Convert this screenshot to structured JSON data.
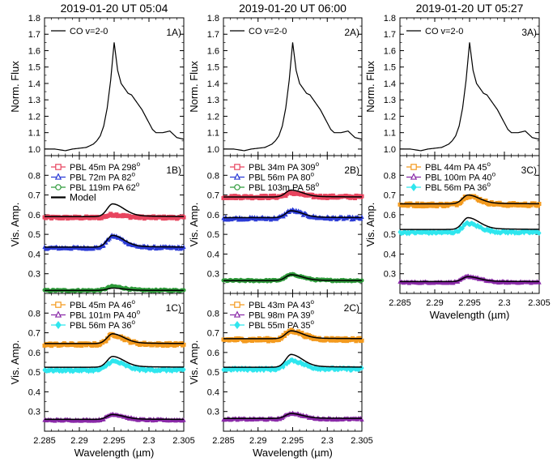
{
  "figure": {
    "x_label": "Wavelength (µm)",
    "x_ticks": [
      2.285,
      2.29,
      2.295,
      2.3,
      2.305
    ],
    "x_tick_labels": [
      "2.285",
      "2.29",
      "2.295",
      "2.3",
      "2.305"
    ]
  },
  "chart_data": [
    {
      "id": "1A",
      "type": "line",
      "panel_label": "1A)",
      "title": "2019-01-20 UT 05:04",
      "ylabel": "Norm. Flux",
      "ylim": [
        0.96,
        1.8
      ],
      "y_ticks": [
        1.0,
        1.1,
        1.2,
        1.3,
        1.4,
        1.5,
        1.6,
        1.7,
        1.8
      ],
      "y_tick_labels": [
        "1.0",
        "1.1",
        "1.2",
        "1.3",
        "1.4",
        "1.5",
        "1.6",
        "1.7",
        "1.8"
      ],
      "xlim": [
        2.285,
        2.305
      ],
      "series": [
        {
          "name": "CO v=2-0",
          "color": "#000000",
          "style": "line",
          "x": [
            2.285,
            2.2865,
            2.288,
            2.289,
            2.29,
            2.291,
            2.292,
            2.2925,
            2.293,
            2.2935,
            2.294,
            2.2945,
            2.295,
            2.2955,
            2.296,
            2.2965,
            2.297,
            2.2975,
            2.298,
            2.2985,
            2.299,
            2.2995,
            2.3,
            2.3005,
            2.301,
            2.302,
            2.303,
            2.304,
            2.305
          ],
          "y": [
            1.0,
            1.0,
            0.99,
            1.0,
            1.005,
            1.01,
            1.03,
            1.05,
            1.08,
            1.14,
            1.25,
            1.42,
            1.65,
            1.48,
            1.4,
            1.37,
            1.34,
            1.33,
            1.3,
            1.27,
            1.24,
            1.2,
            1.16,
            1.12,
            1.1,
            1.1,
            1.11,
            1.07,
            1.06
          ]
        }
      ]
    },
    {
      "id": "2A",
      "type": "line",
      "panel_label": "2A)",
      "title": "2019-01-20 UT 06:00",
      "ylabel": "Norm. Flux",
      "ylim": [
        0.96,
        1.8
      ],
      "y_ticks": [
        1.0,
        1.1,
        1.2,
        1.3,
        1.4,
        1.5,
        1.6,
        1.7,
        1.8
      ],
      "y_tick_labels": [
        "1.0",
        "1.1",
        "1.2",
        "1.3",
        "1.4",
        "1.5",
        "1.6",
        "1.7",
        "1.8"
      ],
      "xlim": [
        2.285,
        2.305
      ],
      "series": [
        {
          "name": "CO v=2-0",
          "color": "#000000",
          "style": "line",
          "x": [
            2.285,
            2.2865,
            2.288,
            2.289,
            2.29,
            2.291,
            2.292,
            2.2925,
            2.293,
            2.2935,
            2.294,
            2.2945,
            2.295,
            2.2955,
            2.296,
            2.2965,
            2.297,
            2.2975,
            2.298,
            2.2985,
            2.299,
            2.2995,
            2.3,
            2.3005,
            2.301,
            2.302,
            2.303,
            2.304,
            2.305
          ],
          "y": [
            1.0,
            1.0,
            0.99,
            1.0,
            1.005,
            1.01,
            1.03,
            1.05,
            1.08,
            1.14,
            1.25,
            1.42,
            1.65,
            1.48,
            1.4,
            1.37,
            1.34,
            1.33,
            1.3,
            1.27,
            1.24,
            1.2,
            1.16,
            1.12,
            1.1,
            1.1,
            1.11,
            1.07,
            1.06
          ]
        }
      ]
    },
    {
      "id": "3A",
      "type": "line",
      "panel_label": "3A)",
      "title": "2019-01-20 UT 05:27",
      "ylabel": "Norm. Flux",
      "ylim": [
        0.96,
        1.8
      ],
      "y_ticks": [
        1.0,
        1.1,
        1.2,
        1.3,
        1.4,
        1.5,
        1.6,
        1.7,
        1.8
      ],
      "y_tick_labels": [
        "1.0",
        "1.1",
        "1.2",
        "1.3",
        "1.4",
        "1.5",
        "1.6",
        "1.7",
        "1.8"
      ],
      "xlim": [
        2.285,
        2.305
      ],
      "series": [
        {
          "name": "CO v=2-0",
          "color": "#000000",
          "style": "line",
          "x": [
            2.285,
            2.2865,
            2.288,
            2.289,
            2.29,
            2.291,
            2.292,
            2.2925,
            2.293,
            2.2935,
            2.294,
            2.2945,
            2.295,
            2.2955,
            2.296,
            2.2965,
            2.297,
            2.2975,
            2.298,
            2.2985,
            2.299,
            2.2995,
            2.3,
            2.3005,
            2.301,
            2.302,
            2.303,
            2.304,
            2.305
          ],
          "y": [
            1.0,
            1.0,
            0.99,
            1.0,
            1.005,
            1.01,
            1.03,
            1.05,
            1.08,
            1.14,
            1.25,
            1.42,
            1.65,
            1.48,
            1.4,
            1.37,
            1.34,
            1.33,
            1.3,
            1.27,
            1.24,
            1.2,
            1.16,
            1.12,
            1.1,
            1.1,
            1.11,
            1.07,
            1.06
          ]
        }
      ]
    },
    {
      "id": "1B",
      "type": "scatter",
      "panel_label": "1B)",
      "ylabel": "Vis. Amp.",
      "ylim": [
        0.2,
        0.9
      ],
      "y_ticks": [
        0.3,
        0.4,
        0.5,
        0.6,
        0.7,
        0.8
      ],
      "y_tick_labels": [
        "0.3",
        "0.4",
        "0.5",
        "0.6",
        "0.7",
        "0.8"
      ],
      "xlim": [
        2.285,
        2.305
      ],
      "series": [
        {
          "name": "PBL 45m PA 298°",
          "label_text": "PBL 45m PA 298",
          "superscript": "o",
          "color": "#e8455f",
          "marker": "square",
          "baseline": 0.585,
          "peak": 0.015,
          "model_baseline": 0.59,
          "model_peak": 0.065,
          "noise": 0.006
        },
        {
          "name": "PBL 72m PA 82°",
          "label_text": "PBL 72m PA 82",
          "superscript": "o",
          "color": "#2b3bd6",
          "marker": "triangle",
          "baseline": 0.43,
          "peak": 0.06,
          "model_baseline": 0.435,
          "model_peak": 0.06,
          "noise": 0.006
        },
        {
          "name": "PBL 119m PA 62°",
          "label_text": "PBL 119m PA 62",
          "superscript": "o",
          "color": "#2e9a3a",
          "marker": "circle",
          "baseline": 0.215,
          "peak": 0.02,
          "model_baseline": 0.215,
          "model_peak": 0.012,
          "noise": 0.004
        }
      ],
      "model": {
        "name": "Model",
        "color": "#000000"
      }
    },
    {
      "id": "2B",
      "type": "scatter",
      "panel_label": "2B)",
      "ylabel": "Vis. Amp.",
      "ylim": [
        0.2,
        0.9
      ],
      "y_ticks": [
        0.3,
        0.4,
        0.5,
        0.6,
        0.7,
        0.8
      ],
      "y_tick_labels": [
        "0.3",
        "0.4",
        "0.5",
        "0.6",
        "0.7",
        "0.8"
      ],
      "xlim": [
        2.285,
        2.305
      ],
      "series": [
        {
          "name": "PBL 34m PA 309°",
          "label_text": "PBL 34m PA 309",
          "superscript": "o",
          "color": "#e8455f",
          "marker": "square",
          "baseline": 0.69,
          "peak": 0.02,
          "model_baseline": 0.69,
          "model_peak": 0.035,
          "noise": 0.007
        },
        {
          "name": "PBL 56m PA 80°",
          "label_text": "PBL 56m PA 80",
          "superscript": "o",
          "color": "#2b3bd6",
          "marker": "triangle",
          "baseline": 0.58,
          "peak": 0.04,
          "model_baseline": 0.585,
          "model_peak": 0.035,
          "noise": 0.007
        },
        {
          "name": "PBL 103m PA 58°",
          "label_text": "PBL 103m PA 58",
          "superscript": "o",
          "color": "#2e9a3a",
          "marker": "circle",
          "baseline": 0.265,
          "peak": 0.03,
          "model_baseline": 0.265,
          "model_peak": 0.03,
          "noise": 0.004
        }
      ],
      "model": {
        "name": "Model",
        "color": "#000000"
      }
    },
    {
      "id": "3C",
      "type": "scatter",
      "panel_label": "3C)",
      "ylabel": "Vis. Amp.",
      "ylim": [
        0.2,
        0.9
      ],
      "y_ticks": [
        0.3,
        0.4,
        0.5,
        0.6,
        0.7,
        0.8
      ],
      "y_tick_labels": [
        "0.3",
        "0.4",
        "0.5",
        "0.6",
        "0.7",
        "0.8"
      ],
      "xlim": [
        2.285,
        2.305
      ],
      "series": [
        {
          "name": "PBL 44m PA 45°",
          "label_text": "PBL 44m PA 45",
          "superscript": "o",
          "color": "#f39a1e",
          "marker": "square",
          "baseline": 0.65,
          "peak": 0.045,
          "model_baseline": 0.655,
          "model_peak": 0.045,
          "noise": 0.008
        },
        {
          "name": "PBL 100m PA 40°",
          "label_text": "PBL 100m PA 40",
          "superscript": "o",
          "color": "#8a2aa8",
          "marker": "triangle",
          "baseline": 0.255,
          "peak": 0.03,
          "model_baseline": 0.26,
          "model_peak": 0.025,
          "noise": 0.004
        },
        {
          "name": "PBL 56m PA 36°",
          "label_text": "PBL 56m PA 36",
          "superscript": "o",
          "color": "#2fe6ee",
          "marker": "diamond",
          "baseline": 0.51,
          "peak": 0.045,
          "model_baseline": 0.525,
          "model_peak": 0.06,
          "noise": 0.006
        }
      ],
      "model": {
        "name": "Model",
        "color": "#000000"
      }
    },
    {
      "id": "1C",
      "type": "scatter",
      "panel_label": "1C)",
      "ylabel": "Vis. Amp.",
      "ylim": [
        0.2,
        0.9
      ],
      "y_ticks": [
        0.3,
        0.4,
        0.5,
        0.6,
        0.7,
        0.8
      ],
      "y_tick_labels": [
        "0.3",
        "0.4",
        "0.5",
        "0.6",
        "0.7",
        "0.8"
      ],
      "xlim": [
        2.285,
        2.305
      ],
      "series": [
        {
          "name": "PBL 45m PA 46°",
          "label_text": "PBL 45m PA 46",
          "superscript": "o",
          "color": "#f39a1e",
          "marker": "square",
          "baseline": 0.64,
          "peak": 0.05,
          "model_baseline": 0.645,
          "model_peak": 0.05,
          "noise": 0.007
        },
        {
          "name": "PBL 101m PA 40°",
          "label_text": "PBL 101m PA 40",
          "superscript": "o",
          "color": "#8a2aa8",
          "marker": "triangle",
          "baseline": 0.255,
          "peak": 0.03,
          "model_baseline": 0.26,
          "model_peak": 0.025,
          "noise": 0.004
        },
        {
          "name": "PBL 56m PA 36°",
          "label_text": "PBL 56m PA 36",
          "superscript": "o",
          "color": "#2fe6ee",
          "marker": "diamond",
          "baseline": 0.51,
          "peak": 0.045,
          "model_baseline": 0.525,
          "model_peak": 0.055,
          "noise": 0.006
        }
      ],
      "model": {
        "name": "Model",
        "color": "#000000"
      }
    },
    {
      "id": "2C",
      "type": "scatter",
      "panel_label": "2C)",
      "ylabel": "Vis. Amp.",
      "ylim": [
        0.2,
        0.9
      ],
      "y_ticks": [
        0.3,
        0.4,
        0.5,
        0.6,
        0.7,
        0.8
      ],
      "y_tick_labels": [
        "0.3",
        "0.4",
        "0.5",
        "0.6",
        "0.7",
        "0.8"
      ],
      "xlim": [
        2.285,
        2.305
      ],
      "series": [
        {
          "name": "PBL 43m PA 43°",
          "label_text": "PBL 43m PA 43",
          "superscript": "o",
          "color": "#f39a1e",
          "marker": "square",
          "baseline": 0.665,
          "peak": 0.045,
          "model_baseline": 0.67,
          "model_peak": 0.04,
          "noise": 0.008
        },
        {
          "name": "PBL 98m PA 39°",
          "label_text": "PBL 98m PA 39",
          "superscript": "o",
          "color": "#8a2aa8",
          "marker": "triangle",
          "baseline": 0.26,
          "peak": 0.03,
          "model_baseline": 0.265,
          "model_peak": 0.025,
          "noise": 0.004
        },
        {
          "name": "PBL 55m PA 35°",
          "label_text": "PBL 55m PA 35",
          "superscript": "o",
          "color": "#2fe6ee",
          "marker": "diamond",
          "baseline": 0.515,
          "peak": 0.045,
          "model_baseline": 0.525,
          "model_peak": 0.065,
          "noise": 0.006
        }
      ],
      "model": {
        "name": "Model",
        "color": "#000000"
      }
    }
  ]
}
